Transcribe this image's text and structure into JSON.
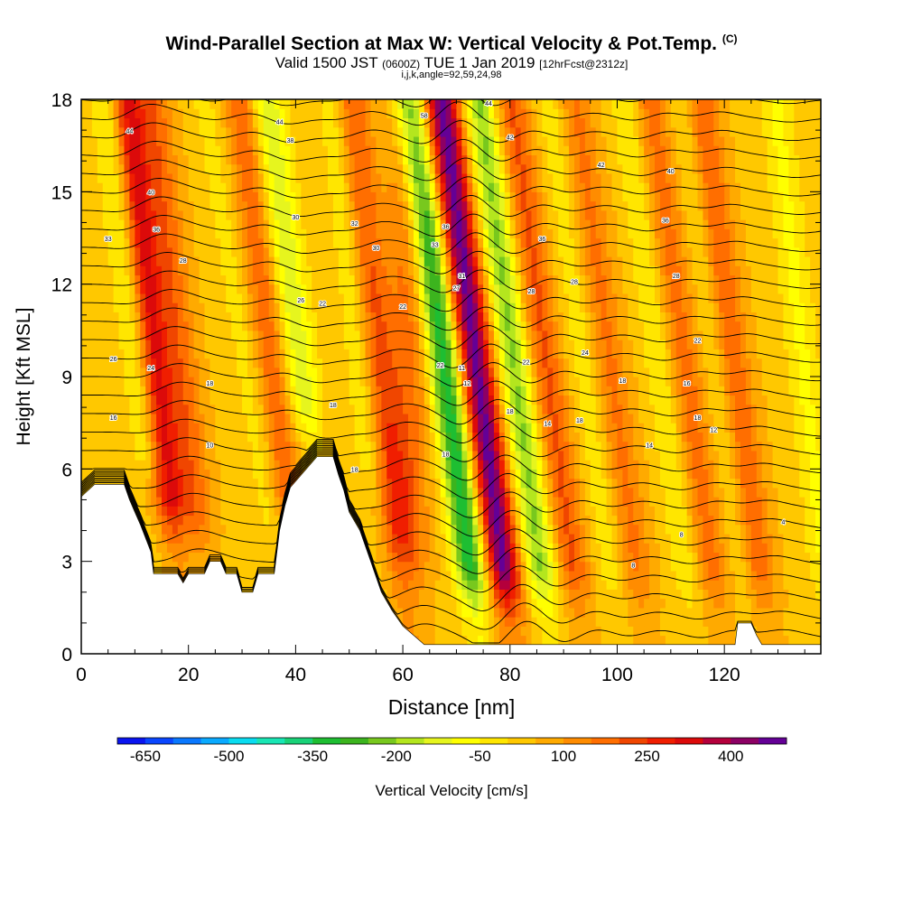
{
  "chart_data": {
    "type": "heatmap",
    "title": "Wind-Parallel Section at Max W: Vertical Velocity & Pot.Temp.",
    "title_mark": "(C)",
    "subtitle_main": "Valid 1500 JST",
    "subtitle_utc": "(0600Z)",
    "subtitle_date": "TUE 1 Jan 2019",
    "subtitle_fcst": "[12hrFcst@2312z]",
    "params": "i,j,k,angle=92,59,24,98",
    "xlabel": "Distance [nm]",
    "ylabel": "Height [Kft MSL]",
    "xlim": [
      0,
      138
    ],
    "ylim": [
      0,
      18
    ],
    "x_ticks": [
      "0",
      "20",
      "40",
      "60",
      "80",
      "100",
      "120"
    ],
    "y_ticks": [
      "0",
      "3",
      "6",
      "9",
      "12",
      "15",
      "18"
    ],
    "colorbar_label": "Vertical Velocity [cm/s]",
    "colorbar_ticks": [
      "-650",
      "-500",
      "-350",
      "-200",
      "-50",
      "100",
      "250",
      "400"
    ],
    "colorbar_colors": [
      "#0a14f0",
      "#0a46ff",
      "#0a78ff",
      "#0aaaff",
      "#0adcf0",
      "#19e6b4",
      "#19d278",
      "#1ebe32",
      "#3cb41e",
      "#78c81e",
      "#b4e61e",
      "#e6f51e",
      "#ffff00",
      "#ffe600",
      "#ffc800",
      "#ffaa00",
      "#ff8c00",
      "#ff6e00",
      "#f04600",
      "#f01e00",
      "#dc0a0a",
      "#b4003c",
      "#8c0064",
      "#640096"
    ],
    "colorbar_range": [
      -700,
      500
    ],
    "terrain_kft": [
      [
        0,
        5.1
      ],
      [
        2.5,
        5.5
      ],
      [
        8,
        5.5
      ],
      [
        9,
        5
      ],
      [
        10,
        4.6
      ],
      [
        11,
        4.2
      ],
      [
        13,
        3.3
      ],
      [
        13.5,
        2.6
      ],
      [
        18,
        2.6
      ],
      [
        19,
        2.3
      ],
      [
        20,
        2.6
      ],
      [
        23,
        2.6
      ],
      [
        24,
        3
      ],
      [
        26,
        3
      ],
      [
        27,
        2.6
      ],
      [
        29,
        2.6
      ],
      [
        30,
        2
      ],
      [
        32,
        2
      ],
      [
        33,
        2.6
      ],
      [
        36,
        2.6
      ],
      [
        37,
        4
      ],
      [
        38,
        4.8
      ],
      [
        39,
        5.4
      ],
      [
        42,
        6
      ],
      [
        44,
        6.4
      ],
      [
        47,
        6.4
      ],
      [
        48,
        5.8
      ],
      [
        49,
        5.3
      ],
      [
        50,
        4.6
      ],
      [
        52,
        4
      ],
      [
        54,
        3
      ],
      [
        56,
        2
      ],
      [
        58,
        1.4
      ],
      [
        60,
        0.9
      ],
      [
        62,
        0.6
      ],
      [
        64,
        0.3
      ],
      [
        67,
        0.3
      ],
      [
        70,
        0.3
      ],
      [
        122,
        0.3
      ],
      [
        122.5,
        1
      ],
      [
        125,
        1
      ],
      [
        126,
        0.6
      ],
      [
        127,
        0.3
      ],
      [
        138,
        0.3
      ]
    ],
    "vv_columns": [
      {
        "x": 11,
        "w": -120,
        "width": 3,
        "tilt": -0.7
      },
      {
        "x": 14,
        "w": 300,
        "width": 3,
        "tilt": -0.6
      },
      {
        "x": 19,
        "w": 140,
        "width": 3,
        "tilt": -0.6
      },
      {
        "x": 31,
        "w": -60,
        "width": 2.5,
        "tilt": -0.9
      },
      {
        "x": 36,
        "w": 150,
        "width": 3,
        "tilt": -0.7
      },
      {
        "x": 41,
        "w": -180,
        "width": 3.2,
        "tilt": -0.7
      },
      {
        "x": 52,
        "w": -80,
        "width": 2.5,
        "tilt": -0.6
      },
      {
        "x": 56,
        "w": 160,
        "width": 3,
        "tilt": -0.6
      },
      {
        "x": 61,
        "w": 130,
        "width": 4,
        "tilt": 0
      },
      {
        "x": 68,
        "w": -380,
        "width": 3,
        "tilt": -0.75
      },
      {
        "x": 74,
        "w": 430,
        "width": 3.2,
        "tilt": -0.75
      },
      {
        "x": 81,
        "w": -250,
        "width": 3,
        "tilt": -0.75
      },
      {
        "x": 87,
        "w": 170,
        "width": 3,
        "tilt": -0.75
      },
      {
        "x": 94,
        "w": -70,
        "width": 2.5,
        "tilt": -0.75
      },
      {
        "x": 99,
        "w": 120,
        "width": 3,
        "tilt": -0.75
      },
      {
        "x": 108,
        "w": -90,
        "width": 2.5,
        "tilt": -0.75
      },
      {
        "x": 113,
        "w": 130,
        "width": 3,
        "tilt": -0.75
      },
      {
        "x": 119,
        "w": -60,
        "width": 2.5,
        "tilt": -0.75
      },
      {
        "x": 122,
        "w": 160,
        "width": 3,
        "tilt": -0.7
      },
      {
        "x": 135,
        "w": -100,
        "width": 3,
        "tilt": -0.6
      }
    ],
    "contour_labels": [
      {
        "x": 9,
        "y": 16.9,
        "text": "44"
      },
      {
        "x": 13,
        "y": 14.9,
        "text": "40"
      },
      {
        "x": 14,
        "y": 13.7,
        "text": "36"
      },
      {
        "x": 5,
        "y": 13.4,
        "text": "33"
      },
      {
        "x": 19,
        "y": 12.7,
        "text": "28"
      },
      {
        "x": 6,
        "y": 9.5,
        "text": "26"
      },
      {
        "x": 13,
        "y": 9.2,
        "text": "24"
      },
      {
        "x": 6,
        "y": 7.6,
        "text": "16"
      },
      {
        "x": 24,
        "y": 8.7,
        "text": "18"
      },
      {
        "x": 24,
        "y": 6.7,
        "text": "10"
      },
      {
        "x": 37,
        "y": 17.2,
        "text": "44"
      },
      {
        "x": 39,
        "y": 16.6,
        "text": "38"
      },
      {
        "x": 40,
        "y": 14.1,
        "text": "30"
      },
      {
        "x": 41,
        "y": 11.4,
        "text": "26"
      },
      {
        "x": 45,
        "y": 11.3,
        "text": "22"
      },
      {
        "x": 47,
        "y": 8.0,
        "text": "18"
      },
      {
        "x": 51,
        "y": 13.9,
        "text": "32"
      },
      {
        "x": 55,
        "y": 13.1,
        "text": "30"
      },
      {
        "x": 60,
        "y": 11.2,
        "text": "22"
      },
      {
        "x": 51,
        "y": 5.9,
        "text": "18"
      },
      {
        "x": 64,
        "y": 17.4,
        "text": "58"
      },
      {
        "x": 68,
        "y": 13.8,
        "text": "36"
      },
      {
        "x": 66,
        "y": 13.2,
        "text": "33"
      },
      {
        "x": 71,
        "y": 12.2,
        "text": "31"
      },
      {
        "x": 70,
        "y": 11.8,
        "text": "27"
      },
      {
        "x": 67,
        "y": 9.3,
        "text": "22"
      },
      {
        "x": 68,
        "y": 6.4,
        "text": "18"
      },
      {
        "x": 71,
        "y": 9.2,
        "text": "11"
      },
      {
        "x": 72,
        "y": 8.7,
        "text": "12"
      },
      {
        "x": 76,
        "y": 17.8,
        "text": "44"
      },
      {
        "x": 80,
        "y": 16.7,
        "text": "42"
      },
      {
        "x": 86,
        "y": 13.4,
        "text": "36"
      },
      {
        "x": 84,
        "y": 11.7,
        "text": "28"
      },
      {
        "x": 83,
        "y": 9.4,
        "text": "22"
      },
      {
        "x": 80,
        "y": 7.8,
        "text": "18"
      },
      {
        "x": 87,
        "y": 7.4,
        "text": "14"
      },
      {
        "x": 92,
        "y": 12.0,
        "text": "28"
      },
      {
        "x": 94,
        "y": 9.7,
        "text": "24"
      },
      {
        "x": 93,
        "y": 7.5,
        "text": "18"
      },
      {
        "x": 97,
        "y": 15.8,
        "text": "42"
      },
      {
        "x": 101,
        "y": 8.8,
        "text": "18"
      },
      {
        "x": 109,
        "y": 14.0,
        "text": "36"
      },
      {
        "x": 110,
        "y": 15.6,
        "text": "40"
      },
      {
        "x": 111,
        "y": 12.2,
        "text": "28"
      },
      {
        "x": 115,
        "y": 10.1,
        "text": "22"
      },
      {
        "x": 115,
        "y": 7.6,
        "text": "18"
      },
      {
        "x": 106,
        "y": 6.7,
        "text": "14"
      },
      {
        "x": 113,
        "y": 8.7,
        "text": "16"
      },
      {
        "x": 118,
        "y": 7.2,
        "text": "12"
      },
      {
        "x": 112,
        "y": 3.8,
        "text": "8"
      },
      {
        "x": 103,
        "y": 2.8,
        "text": "8"
      },
      {
        "x": 131,
        "y": 4.2,
        "text": "4"
      }
    ]
  }
}
